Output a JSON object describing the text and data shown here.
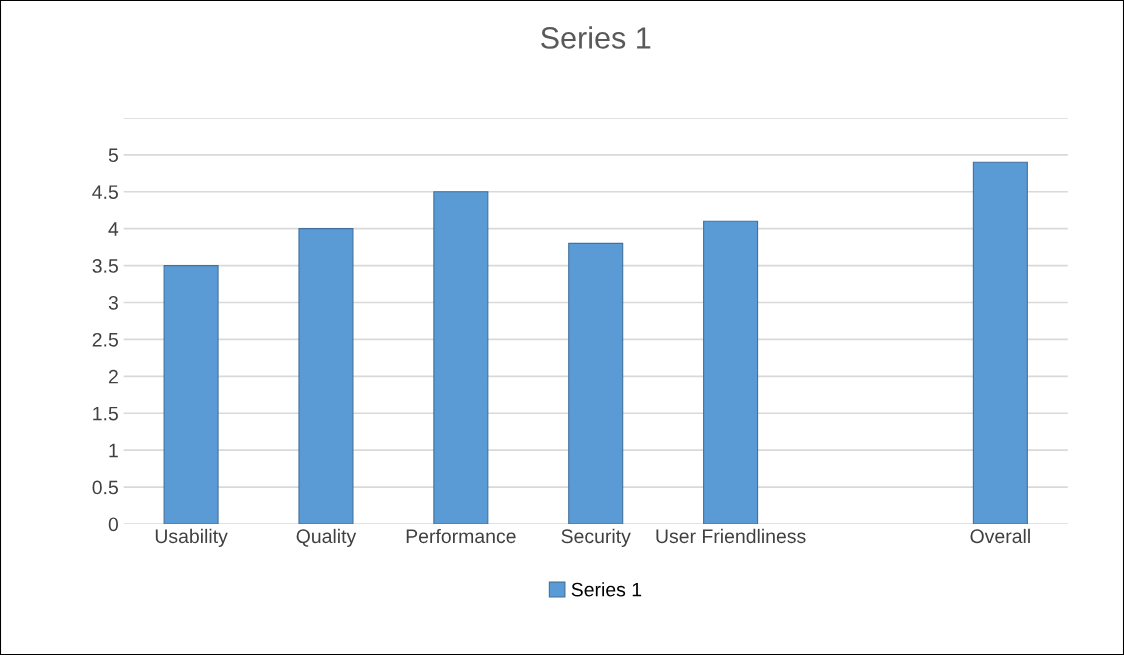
{
  "chart_data": {
    "type": "bar",
    "title": "Series 1",
    "categories": [
      "Usability",
      "Quality",
      "Performance",
      "Security",
      "User Friendliness",
      null,
      "Overall"
    ],
    "series": [
      {
        "name": "Series 1",
        "color": "#5b9bd5",
        "values": [
          3.5,
          4.0,
          4.5,
          3.8,
          4.1,
          null,
          4.9
        ]
      }
    ],
    "ylim": [
      0,
      5.5
    ],
    "yticks": [
      0,
      0.5,
      1,
      1.5,
      2,
      2.5,
      3,
      3.5,
      4,
      4.5,
      5,
      {
        "value": 5.5,
        "label": null
      }
    ],
    "grid": "y",
    "legend": "bottom"
  }
}
